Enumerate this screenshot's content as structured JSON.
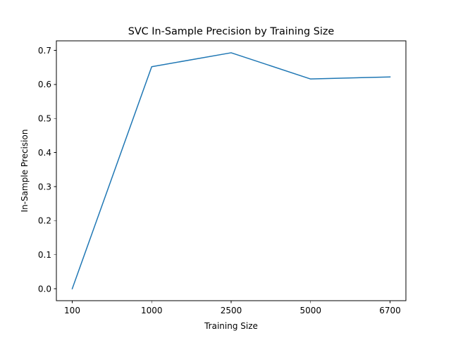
{
  "chart_data": {
    "type": "line",
    "title": "SVC In-Sample Precision by Training Size",
    "xlabel": "Training Size",
    "ylabel": "In-Sample Precision",
    "categories": [
      "100",
      "1000",
      "2500",
      "5000",
      "6700"
    ],
    "series": [
      {
        "values": [
          0.0,
          0.652,
          0.693,
          0.616,
          0.622
        ],
        "color": "#1f77b4"
      }
    ],
    "yticks": [
      0.0,
      0.1,
      0.2,
      0.3,
      0.4,
      0.5,
      0.6,
      0.7
    ],
    "ytick_labels": [
      "0.0",
      "0.1",
      "0.2",
      "0.3",
      "0.4",
      "0.5",
      "0.6",
      "0.7"
    ],
    "ylim": [
      -0.035,
      0.728
    ],
    "grid": false,
    "legend": false
  }
}
